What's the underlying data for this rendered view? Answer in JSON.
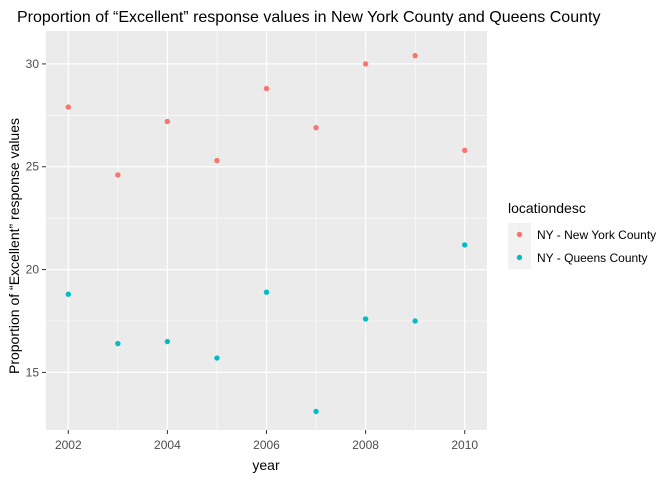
{
  "chart_data": {
    "type": "scatter",
    "title": "Proportion of “Excellent” response values in New York County and Queens County",
    "xlabel": "year",
    "ylabel": "Proportion of “Excellent” response values",
    "xlim": [
      2001.55,
      2010.45
    ],
    "ylim": [
      12.2,
      31.6
    ],
    "x_ticks": [
      2002,
      2004,
      2006,
      2008,
      2010
    ],
    "x_tick_labels": [
      "2002",
      "2004",
      "2006",
      "2008",
      "2010"
    ],
    "y_ticks": [
      15,
      20,
      25,
      30
    ],
    "y_tick_labels": [
      "15",
      "20",
      "25",
      "30"
    ],
    "grid": true,
    "legend": {
      "title": "locationdesc",
      "position": "right"
    },
    "series": [
      {
        "name": "NY - New York County",
        "color": "#F8766D",
        "x": [
          2002,
          2003,
          2004,
          2005,
          2006,
          2007,
          2008,
          2009,
          2010
        ],
        "y": [
          27.9,
          24.6,
          27.2,
          25.3,
          28.8,
          26.9,
          30.0,
          30.4,
          25.8
        ]
      },
      {
        "name": "NY - Queens County",
        "color": "#00BFC4",
        "x": [
          2002,
          2003,
          2004,
          2005,
          2006,
          2007,
          2008,
          2009,
          2010
        ],
        "y": [
          18.8,
          16.4,
          16.5,
          15.7,
          18.9,
          13.1,
          17.6,
          17.5,
          21.2
        ]
      }
    ]
  }
}
